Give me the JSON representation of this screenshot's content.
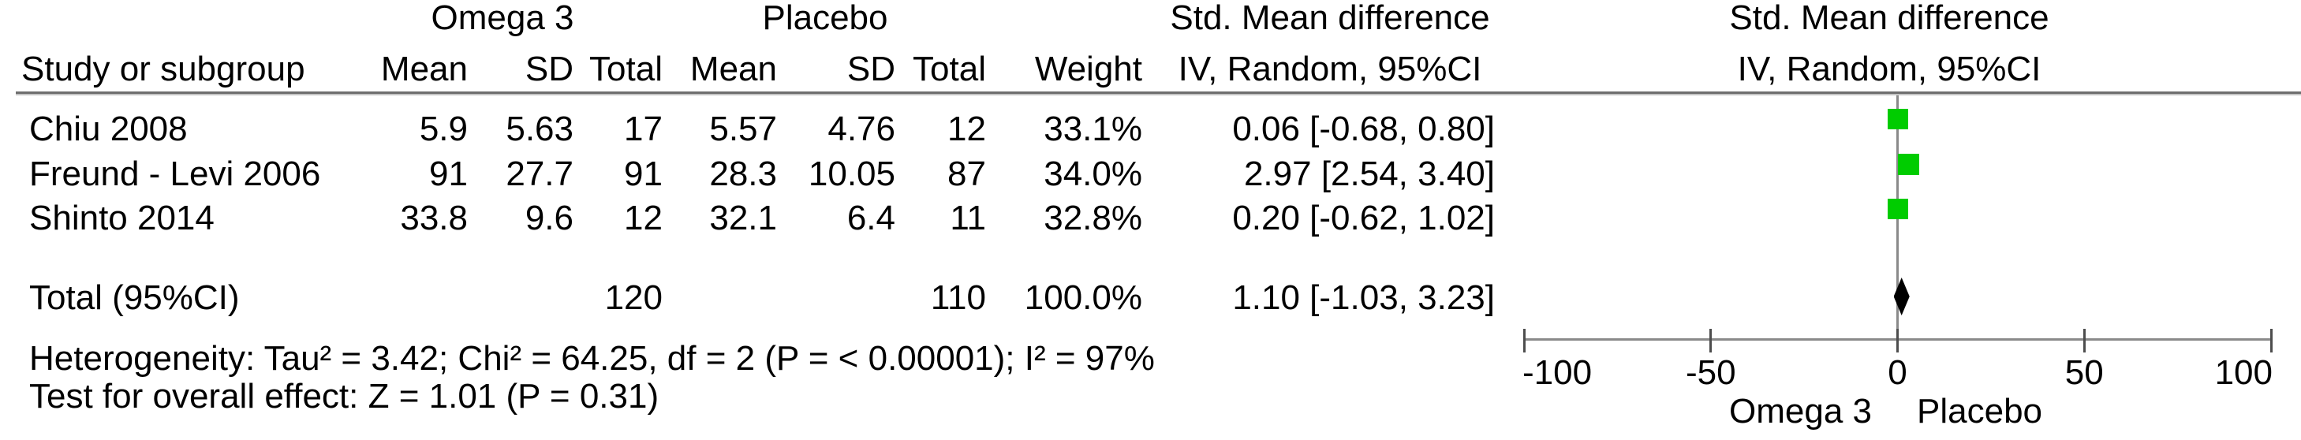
{
  "header": {
    "group1": "Omega 3",
    "group2": "Placebo",
    "effect_title": "Std. Mean difference",
    "effect_subtitle": "IV, Random, 95%CI",
    "columns": {
      "study": "Study or subgroup",
      "mean": "Mean",
      "sd": "SD",
      "total": "Total",
      "weight": "Weight"
    }
  },
  "table": {
    "studies": [
      {
        "label": "Chiu 2008",
        "mean1": "5.9",
        "sd1": "5.63",
        "total1": "17",
        "mean2": "5.57",
        "sd2": "4.76",
        "total2": "12",
        "weight": "33.1%",
        "ci_text": "0.06 [-0.68, 0.80]"
      },
      {
        "label": "Freund - Levi 2006",
        "mean1": "91",
        "sd1": "27.7",
        "total1": "91",
        "mean2": "28.3",
        "sd2": "10.05",
        "total2": "87",
        "weight": "34.0%",
        "ci_text": "2.97 [2.54, 3.40]"
      },
      {
        "label": "Shinto 2014",
        "mean1": "33.8",
        "sd1": "9.6",
        "total1": "12",
        "mean2": "32.1",
        "sd2": "6.4",
        "total2": "11",
        "weight": "32.8%",
        "ci_text": "0.20 [-0.62, 1.02]"
      }
    ],
    "total_row": {
      "label": "Total (95%CI)",
      "total1": "120",
      "total2": "110",
      "weight": "100.0%",
      "ci_text": "1.10 [-1.03, 3.23]"
    }
  },
  "footnotes": {
    "heterogeneity": "Heterogeneity: Tau² = 3.42; Chi² = 64.25, df = 2 (P = < 0.00001); I² = 97%",
    "overall_effect": "Test for overall effect: Z = 1.01 (P = 0.31)"
  },
  "colors": {
    "marker": "#00CC00",
    "diamond": "#000000",
    "axis": "#8A8A8A"
  },
  "chart_data": {
    "type": "forest",
    "effect_measure": "Std. Mean difference",
    "model": "IV, Random, 95%CI",
    "axis": {
      "min": -100,
      "max": 100,
      "ticks": [
        -100,
        -50,
        0,
        50,
        100
      ],
      "favours_left": "Omega 3",
      "favours_right": "Placebo"
    },
    "studies": [
      {
        "label": "Chiu 2008",
        "smd": 0.06,
        "ci_low": -0.68,
        "ci_high": 0.8,
        "weight_pct": 33.1
      },
      {
        "label": "Freund - Levi 2006",
        "smd": 2.97,
        "ci_low": 2.54,
        "ci_high": 3.4,
        "weight_pct": 34.0
      },
      {
        "label": "Shinto 2014",
        "smd": 0.2,
        "ci_low": -0.62,
        "ci_high": 1.02,
        "weight_pct": 32.8
      }
    ],
    "total": {
      "label": "Total (95%CI)",
      "smd": 1.1,
      "ci_low": -1.03,
      "ci_high": 3.23,
      "weight_pct": 100.0
    }
  }
}
